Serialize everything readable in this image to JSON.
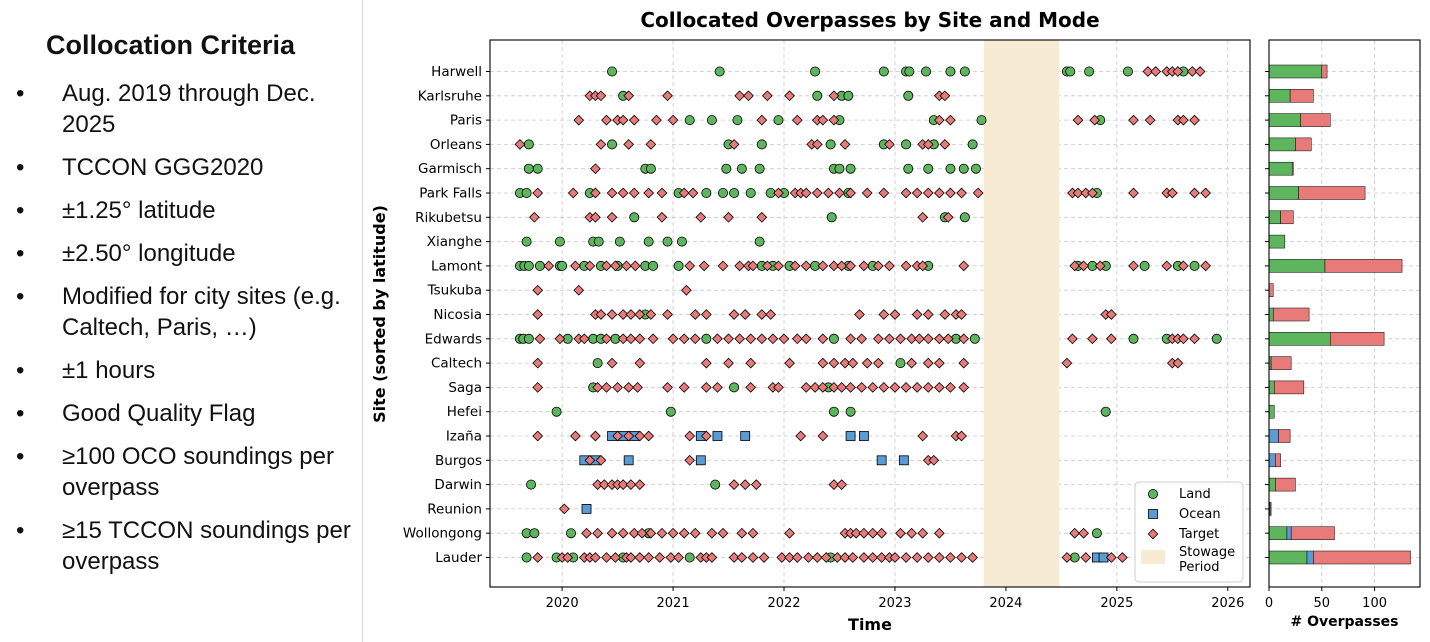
{
  "criteria": {
    "title": "Collocation Criteria",
    "bullet": "•",
    "items": [
      "Aug. 2019 through Dec. 2025",
      "TCCON GGG2020",
      "±1.25° latitude",
      "±2.50° longitude",
      "Modified for city sites (e.g. Caltech, Paris, …)",
      "±1 hours",
      "Good Quality Flag",
      "≥100 OCO soundings per overpass",
      "≥15 TCCON soundings per overpass"
    ]
  },
  "chart_data": [
    {
      "type": "scatter",
      "title": "Collocated Overpasses by Site and Mode",
      "xlabel": "Time",
      "ylabel": "Site (sorted by latitude)",
      "xlim": [
        2019.35,
        2026.2
      ],
      "xticks": [
        2020,
        2021,
        2022,
        2023,
        2024,
        2025,
        2026
      ],
      "grid": true,
      "stowage_period": {
        "start": 2023.8,
        "end": 2024.48,
        "label": "Stowage Period",
        "color": "#f7ebd3"
      },
      "legend": {
        "location": "bottom-right",
        "entries": [
          "Land",
          "Ocean",
          "Target",
          "Stowage Period"
        ]
      },
      "colors": {
        "land": "#5db65d",
        "ocean": "#5b9bd5",
        "target": "#e87a7a",
        "edge": "#000000"
      },
      "sites": [
        {
          "name": "Harwell",
          "land": [
            2020.45,
            2021.42,
            2022.28,
            2022.9,
            2023.1,
            2023.13,
            2023.28,
            2023.5,
            2023.63,
            2024.55,
            2024.58,
            2024.75,
            2025.1,
            2025.6
          ],
          "ocean": [],
          "target": [
            2025.28,
            2025.35,
            2025.45,
            2025.5,
            2025.55,
            2025.68,
            2025.75
          ]
        },
        {
          "name": "Karlsruhe",
          "land": [
            2020.55,
            2022.3,
            2022.52,
            2022.58,
            2023.12
          ],
          "ocean": [],
          "target": [
            2020.25,
            2020.3,
            2020.35,
            2020.6,
            2020.95,
            2021.6,
            2021.68,
            2021.85,
            2022.05,
            2022.45,
            2023.4,
            2023.45
          ]
        },
        {
          "name": "Paris",
          "land": [
            2021.15,
            2021.35,
            2021.58,
            2021.95,
            2022.5,
            2023.35,
            2023.78,
            2024.85
          ],
          "ocean": [],
          "target": [
            2020.15,
            2020.4,
            2020.5,
            2020.55,
            2020.65,
            2020.85,
            2021.0,
            2021.8,
            2022.12,
            2022.3,
            2022.35,
            2022.45,
            2023.4,
            2023.5,
            2024.65,
            2024.8,
            2025.15,
            2025.3,
            2025.55,
            2025.6,
            2025.7
          ]
        },
        {
          "name": "Orleans",
          "land": [
            2019.7,
            2020.45,
            2021.5,
            2021.8,
            2022.42,
            2022.9,
            2023.1,
            2023.35,
            2023.7
          ],
          "ocean": [],
          "target": [
            2019.62,
            2020.35,
            2020.6,
            2020.8,
            2021.55,
            2022.25,
            2022.3,
            2022.55,
            2022.95,
            2023.25,
            2023.3,
            2023.45
          ]
        },
        {
          "name": "Garmisch",
          "land": [
            2019.7,
            2019.78,
            2020.75,
            2020.8,
            2021.48,
            2021.62,
            2021.78,
            2022.45,
            2022.5,
            2022.6,
            2023.12,
            2023.3,
            2023.5,
            2023.62,
            2023.73
          ],
          "ocean": [],
          "target": [
            2020.3
          ]
        },
        {
          "name": "Park Falls",
          "land": [
            2019.62,
            2019.68,
            2020.25,
            2021.05,
            2021.3,
            2021.45,
            2021.55,
            2021.7,
            2021.88,
            2022.0,
            2022.58,
            2024.82
          ],
          "ocean": [],
          "target": [
            2019.78,
            2020.1,
            2020.3,
            2020.45,
            2020.55,
            2020.65,
            2020.78,
            2020.9,
            2021.1,
            2021.18,
            2021.95,
            2022.1,
            2022.15,
            2022.2,
            2022.3,
            2022.4,
            2022.5,
            2022.6,
            2022.75,
            2022.9,
            2023.1,
            2023.2,
            2023.3,
            2023.4,
            2023.5,
            2023.6,
            2023.75,
            2024.6,
            2024.65,
            2024.72,
            2024.78,
            2025.15,
            2025.45,
            2025.5,
            2025.7,
            2025.8
          ]
        },
        {
          "name": "Rikubetsu",
          "land": [
            2020.65,
            2022.43,
            2023.45,
            2023.63
          ],
          "ocean": [],
          "target": [
            2019.75,
            2020.25,
            2020.3,
            2020.45,
            2020.9,
            2021.25,
            2021.5,
            2021.8,
            2023.25,
            2023.48
          ]
        },
        {
          "name": "Xianghe",
          "land": [
            2019.68,
            2019.98,
            2020.28,
            2020.33,
            2020.52,
            2020.78,
            2020.95,
            2021.08,
            2021.78
          ],
          "ocean": [],
          "target": []
        },
        {
          "name": "Lamont",
          "land": [
            2019.62,
            2019.66,
            2019.7,
            2019.8,
            2019.98,
            2020.0,
            2020.2,
            2020.35,
            2020.5,
            2020.75,
            2020.82,
            2021.05,
            2021.8,
            2021.9,
            2022.05,
            2022.28,
            2022.58,
            2022.8,
            2023.3,
            2024.65,
            2024.78,
            2024.9,
            2025.25,
            2025.55,
            2025.7
          ],
          "ocean": [],
          "target": [
            2019.88,
            2020.12,
            2020.25,
            2020.4,
            2020.48,
            2020.58,
            2020.66,
            2021.15,
            2021.28,
            2021.45,
            2021.6,
            2021.68,
            2021.72,
            2021.85,
            2021.95,
            2022.1,
            2022.2,
            2022.35,
            2022.45,
            2022.52,
            2022.6,
            2022.72,
            2022.85,
            2022.95,
            2023.1,
            2023.2,
            2023.25,
            2023.62,
            2024.62,
            2024.7,
            2024.85,
            2025.15,
            2025.45,
            2025.6,
            2025.8
          ]
        },
        {
          "name": "Tsukuba",
          "land": [],
          "ocean": [],
          "target": [
            2019.78,
            2020.15,
            2021.12
          ]
        },
        {
          "name": "Nicosia",
          "land": [
            2020.75
          ],
          "ocean": [],
          "target": [
            2019.78,
            2020.3,
            2020.35,
            2020.45,
            2020.55,
            2020.62,
            2020.7,
            2020.8,
            2020.95,
            2021.2,
            2021.3,
            2021.55,
            2021.65,
            2021.8,
            2021.88,
            2022.68,
            2022.9,
            2023.0,
            2023.2,
            2023.3,
            2023.45,
            2023.55,
            2023.6,
            2024.9,
            2024.95
          ]
        },
        {
          "name": "Edwards",
          "land": [
            2019.62,
            2019.65,
            2019.7,
            2020.05,
            2020.28,
            2020.35,
            2020.48,
            2021.3,
            2022.45,
            2023.55,
            2023.72,
            2025.15,
            2025.45,
            2025.9
          ],
          "ocean": [],
          "target": [
            2019.8,
            2019.98,
            2020.15,
            2020.2,
            2020.4,
            2020.55,
            2020.62,
            2020.7,
            2020.82,
            2021.0,
            2021.1,
            2021.2,
            2021.4,
            2021.5,
            2021.6,
            2021.7,
            2021.8,
            2021.9,
            2022.0,
            2022.12,
            2022.2,
            2022.35,
            2022.6,
            2022.7,
            2022.85,
            2022.95,
            2023.05,
            2023.15,
            2023.22,
            2023.3,
            2023.4,
            2023.48,
            2023.62,
            2024.6,
            2024.78,
            2024.95,
            2025.5,
            2025.55,
            2025.6,
            2025.7
          ]
        },
        {
          "name": "Caltech",
          "land": [
            2020.32,
            2023.05
          ],
          "ocean": [],
          "target": [
            2019.78,
            2020.45,
            2020.7,
            2021.3,
            2021.5,
            2021.7,
            2022.05,
            2022.35,
            2022.45,
            2022.55,
            2022.62,
            2022.75,
            2022.85,
            2023.15,
            2023.3,
            2023.4,
            2023.62,
            2024.55,
            2025.5,
            2025.55
          ]
        },
        {
          "name": "Saga",
          "land": [
            2020.28,
            2021.55,
            2022.4
          ],
          "ocean": [],
          "target": [
            2019.78,
            2020.32,
            2020.4,
            2020.5,
            2020.6,
            2020.68,
            2020.95,
            2021.1,
            2021.3,
            2021.4,
            2021.7,
            2021.9,
            2021.95,
            2022.2,
            2022.28,
            2022.35,
            2022.45,
            2022.52,
            2022.6,
            2022.7,
            2022.8,
            2022.9,
            2023.0,
            2023.1,
            2023.2,
            2023.3,
            2023.4,
            2023.5,
            2023.62
          ]
        },
        {
          "name": "Hefei",
          "land": [
            2019.95,
            2020.98,
            2022.45,
            2022.6,
            2024.9
          ],
          "ocean": [],
          "target": []
        },
        {
          "name": "Izaña",
          "land": [],
          "ocean": [
            2020.45,
            2020.55,
            2020.65,
            2021.25,
            2021.4,
            2021.65,
            2022.6,
            2022.72
          ],
          "ocean_note": "",
          "target": [
            2019.78,
            2020.12,
            2020.3,
            2020.5,
            2020.6,
            2020.7,
            2020.78,
            2021.15,
            2021.3,
            2022.15,
            2022.35,
            2023.25,
            2023.55,
            2023.6
          ]
        },
        {
          "name": "Burgos",
          "land": [],
          "ocean": [
            2020.2,
            2020.3,
            2020.6,
            2021.25,
            2022.88,
            2023.08
          ],
          "target": [
            2020.25,
            2020.35,
            2021.15,
            2023.3,
            2023.35
          ]
        },
        {
          "name": "Darwin",
          "land": [
            2019.72,
            2021.38
          ],
          "ocean": [],
          "target": [
            2020.32,
            2020.38,
            2020.45,
            2020.5,
            2020.55,
            2020.62,
            2020.7,
            2021.55,
            2021.65,
            2021.75,
            2022.45,
            2022.52
          ]
        },
        {
          "name": "Reunion",
          "land": [],
          "ocean": [
            2020.22
          ],
          "target": [
            2020.02
          ]
        },
        {
          "name": "Wollongong",
          "land": [
            2019.68,
            2019.75,
            2020.08,
            2020.78,
            2024.82
          ],
          "ocean": [],
          "target": [
            2020.22,
            2020.32,
            2020.45,
            2020.55,
            2020.65,
            2020.72,
            2020.8,
            2020.9,
            2021.0,
            2021.1,
            2021.2,
            2021.35,
            2021.45,
            2021.62,
            2021.72,
            2022.05,
            2022.55,
            2022.6,
            2022.65,
            2022.72,
            2022.8,
            2022.88,
            2023.05,
            2023.15,
            2023.25,
            2023.4,
            2024.62,
            2024.7
          ]
        },
        {
          "name": "Lauder",
          "land": [
            2019.68,
            2019.95,
            2020.1,
            2020.55,
            2021.15,
            2022.42,
            2024.62
          ],
          "ocean": [
            2024.82,
            2024.88
          ],
          "target": [
            2019.78,
            2020.0,
            2020.05,
            2020.2,
            2020.25,
            2020.3,
            2020.4,
            2020.48,
            2020.58,
            2020.62,
            2020.7,
            2020.78,
            2020.88,
            2020.98,
            2021.05,
            2021.25,
            2021.3,
            2021.35,
            2021.55,
            2021.62,
            2021.72,
            2021.82,
            2021.98,
            2022.05,
            2022.12,
            2022.22,
            2022.3,
            2022.38,
            2022.48,
            2022.55,
            2022.62,
            2022.72,
            2022.8,
            2022.88,
            2022.95,
            2023.0,
            2023.1,
            2023.2,
            2023.3,
            2023.4,
            2023.5,
            2023.6,
            2023.7,
            2024.55,
            2024.72,
            2024.95,
            2025.05
          ]
        }
      ]
    },
    {
      "type": "bar",
      "orientation": "horizontal",
      "stacked": true,
      "xlabel": "# Overpasses",
      "xlim": [
        0,
        143
      ],
      "xticks": [
        0,
        50,
        100
      ],
      "grid": true,
      "series_names": [
        "Land",
        "Ocean",
        "Target"
      ],
      "categories": [
        "Harwell",
        "Karlsruhe",
        "Paris",
        "Orleans",
        "Garmisch",
        "Park Falls",
        "Rikubetsu",
        "Xianghe",
        "Lamont",
        "Tsukuba",
        "Nicosia",
        "Edwards",
        "Caltech",
        "Saga",
        "Hefei",
        "Izaña",
        "Burgos",
        "Darwin",
        "Reunion",
        "Wollongong",
        "Lauder"
      ],
      "land": [
        50,
        20,
        30,
        25,
        22,
        28,
        11,
        15,
        53,
        0,
        4,
        58,
        2,
        5,
        5,
        0,
        0,
        6,
        0,
        17,
        36
      ],
      "ocean": [
        0,
        0,
        0,
        0,
        0,
        0,
        0,
        0,
        0,
        0,
        0,
        0,
        0,
        0,
        0,
        9,
        6,
        0,
        1,
        4,
        6
      ],
      "target": [
        5,
        22,
        28,
        15,
        1,
        63,
        12,
        0,
        73,
        4,
        34,
        51,
        19,
        28,
        0,
        11,
        5,
        19,
        1,
        41,
        92
      ]
    }
  ]
}
